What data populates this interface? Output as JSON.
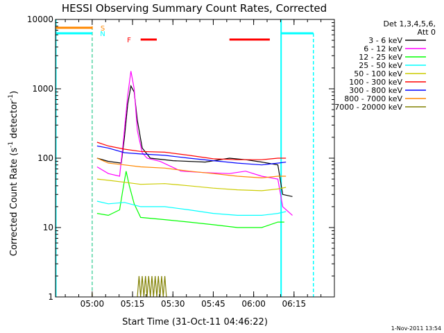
{
  "chart_data": {
    "type": "line",
    "title": "HESSI Observing Summary Count Rates, Corrected",
    "xlabel": "Start Time (31-Oct-11 04:46:22)",
    "ylabel_main": "Corrected Count Rate (s",
    "ylabel_sup1": "-1",
    "ylabel_mid": " detector",
    "ylabel_sup2": "-1",
    "ylabel_end": ")",
    "yscale": "log",
    "xlim": [
      4.7728,
      6.5
    ],
    "ylim": [
      1,
      10000
    ],
    "xticks": [
      {
        "value": 5.0,
        "label": "05:00"
      },
      {
        "value": 5.25,
        "label": "05:15"
      },
      {
        "value": 5.5,
        "label": "05:30"
      },
      {
        "value": 5.75,
        "label": "05:45"
      },
      {
        "value": 6.0,
        "label": "06:00"
      },
      {
        "value": 6.25,
        "label": "06:15"
      }
    ],
    "yticks": [
      {
        "value": 1,
        "label": "1"
      },
      {
        "value": 10,
        "label": "10"
      },
      {
        "value": 100,
        "label": "100"
      },
      {
        "value": 1000,
        "label": "1000"
      },
      {
        "value": 10000,
        "label": "10000"
      }
    ],
    "legend_header": [
      "Det 1,3,4,5,6,",
      "Att 0"
    ],
    "legend_position": "right",
    "series": [
      {
        "name": "3 - 6 keV",
        "color": "#000000",
        "points": [
          [
            5.03,
            100
          ],
          [
            5.1,
            90
          ],
          [
            5.18,
            85
          ],
          [
            5.2,
            200
          ],
          [
            5.22,
            600
          ],
          [
            5.24,
            1100
          ],
          [
            5.26,
            900
          ],
          [
            5.28,
            350
          ],
          [
            5.31,
            140
          ],
          [
            5.36,
            100
          ],
          [
            5.5,
            92
          ],
          [
            5.7,
            88
          ],
          [
            5.85,
            100
          ],
          [
            5.95,
            95
          ],
          [
            6.05,
            88
          ],
          [
            6.15,
            80
          ],
          [
            6.18,
            30
          ],
          [
            6.24,
            28
          ]
        ]
      },
      {
        "name": "6 - 12 keV",
        "color": "#ff00ff",
        "points": [
          [
            5.03,
            75
          ],
          [
            5.1,
            60
          ],
          [
            5.17,
            55
          ],
          [
            5.19,
            150
          ],
          [
            5.22,
            800
          ],
          [
            5.24,
            1800
          ],
          [
            5.26,
            1000
          ],
          [
            5.28,
            250
          ],
          [
            5.31,
            120
          ],
          [
            5.34,
            100
          ],
          [
            5.42,
            90
          ],
          [
            5.55,
            65
          ],
          [
            5.7,
            62
          ],
          [
            5.85,
            60
          ],
          [
            5.95,
            65
          ],
          [
            6.05,
            55
          ],
          [
            6.15,
            50
          ],
          [
            6.18,
            20
          ],
          [
            6.24,
            15
          ]
        ]
      },
      {
        "name": "12 - 25 keV",
        "color": "#00ff00",
        "points": [
          [
            5.03,
            16
          ],
          [
            5.1,
            15
          ],
          [
            5.17,
            18
          ],
          [
            5.19,
            35
          ],
          [
            5.21,
            65
          ],
          [
            5.23,
            40
          ],
          [
            5.26,
            22
          ],
          [
            5.3,
            14
          ],
          [
            5.45,
            13
          ],
          [
            5.6,
            12
          ],
          [
            5.75,
            11
          ],
          [
            5.9,
            10
          ],
          [
            6.05,
            10
          ],
          [
            6.15,
            12
          ],
          [
            6.19,
            12
          ]
        ]
      },
      {
        "name": "25 - 50 keV",
        "color": "#00ffff",
        "points": [
          [
            5.03,
            24
          ],
          [
            5.1,
            22
          ],
          [
            5.2,
            23
          ],
          [
            5.3,
            20
          ],
          [
            5.45,
            20
          ],
          [
            5.6,
            18
          ],
          [
            5.75,
            16
          ],
          [
            5.9,
            15
          ],
          [
            6.05,
            15
          ],
          [
            6.15,
            16
          ],
          [
            6.2,
            17
          ]
        ]
      },
      {
        "name": "50 - 100 keV",
        "color": "#cccc00",
        "points": [
          [
            5.03,
            50
          ],
          [
            5.1,
            48
          ],
          [
            5.2,
            45
          ],
          [
            5.3,
            42
          ],
          [
            5.45,
            43
          ],
          [
            5.6,
            40
          ],
          [
            5.75,
            37
          ],
          [
            5.9,
            35
          ],
          [
            6.05,
            34
          ],
          [
            6.15,
            36
          ],
          [
            6.2,
            38
          ]
        ]
      },
      {
        "name": "100 - 300 keV",
        "color": "#ff0000",
        "points": [
          [
            5.03,
            170
          ],
          [
            5.1,
            150
          ],
          [
            5.2,
            135
          ],
          [
            5.3,
            125
          ],
          [
            5.45,
            122
          ],
          [
            5.6,
            110
          ],
          [
            5.75,
            98
          ],
          [
            5.9,
            95
          ],
          [
            6.05,
            95
          ],
          [
            6.15,
            100
          ],
          [
            6.2,
            100
          ]
        ]
      },
      {
        "name": "300 - 800 keV",
        "color": "#0000ff",
        "points": [
          [
            5.03,
            150
          ],
          [
            5.1,
            140
          ],
          [
            5.2,
            120
          ],
          [
            5.3,
            115
          ],
          [
            5.45,
            110
          ],
          [
            5.6,
            100
          ],
          [
            5.75,
            92
          ],
          [
            5.9,
            85
          ],
          [
            6.05,
            80
          ],
          [
            6.15,
            85
          ],
          [
            6.2,
            88
          ]
        ]
      },
      {
        "name": "800 - 7000 keV",
        "color": "#ff8800",
        "points": [
          [
            5.03,
            100
          ],
          [
            5.1,
            85
          ],
          [
            5.2,
            80
          ],
          [
            5.3,
            75
          ],
          [
            5.45,
            72
          ],
          [
            5.6,
            65
          ],
          [
            5.75,
            60
          ],
          [
            5.9,
            55
          ],
          [
            6.05,
            52
          ],
          [
            6.15,
            55
          ],
          [
            6.2,
            55
          ]
        ]
      },
      {
        "name": "7000 - 20000 keV",
        "color": "#808000",
        "points": [
          [
            5.28,
            1
          ],
          [
            5.29,
            2
          ],
          [
            5.3,
            1
          ],
          [
            5.31,
            2
          ],
          [
            5.32,
            1
          ],
          [
            5.33,
            2
          ],
          [
            5.34,
            1
          ],
          [
            5.35,
            2
          ],
          [
            5.36,
            1
          ],
          [
            5.37,
            2
          ],
          [
            5.38,
            1
          ],
          [
            5.39,
            2
          ],
          [
            5.4,
            1
          ],
          [
            5.41,
            2
          ],
          [
            5.42,
            1
          ],
          [
            5.43,
            2
          ],
          [
            5.44,
            1
          ],
          [
            5.45,
            2
          ],
          [
            5.46,
            1
          ]
        ]
      }
    ],
    "flags": [
      {
        "label": "S",
        "color": "#ff8800",
        "segments": [
          [
            4.775,
            5.0
          ]
        ]
      },
      {
        "label": "N",
        "color": "#00ffff",
        "segments": [
          [
            4.775,
            5.0
          ],
          [
            6.17,
            6.37
          ]
        ]
      },
      {
        "label": "F",
        "color": "#ff0000",
        "segments": [
          [
            5.3,
            5.4
          ],
          [
            5.85,
            6.1
          ]
        ]
      }
    ],
    "footer": "1-Nov-2011 13:54"
  }
}
